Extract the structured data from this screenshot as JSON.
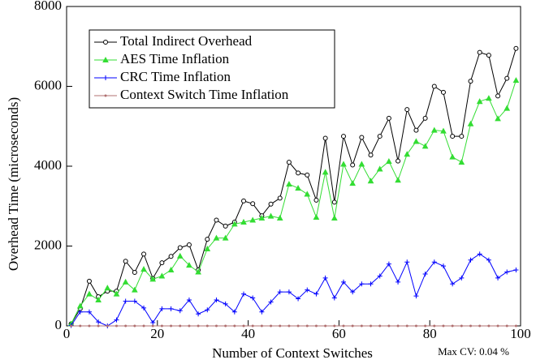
{
  "chart_data": {
    "type": "line",
    "x_label": "Number of Context Switches",
    "y_label": "Overhead Time (microseconds)",
    "annotation": "Max CV: 0.04 %",
    "x": [
      1,
      3,
      5,
      7,
      9,
      11,
      13,
      15,
      17,
      19,
      21,
      23,
      25,
      27,
      29,
      31,
      33,
      35,
      37,
      39,
      41,
      43,
      45,
      47,
      49,
      51,
      53,
      55,
      57,
      59,
      61,
      63,
      65,
      67,
      69,
      71,
      73,
      75,
      77,
      79,
      81,
      83,
      85,
      87,
      89,
      91,
      93,
      95,
      97,
      99
    ],
    "series": [
      {
        "name": "Total Indirect Overhead",
        "color": "#000000",
        "marker": "circle",
        "values": [
          50,
          430,
          1120,
          730,
          870,
          870,
          1620,
          1340,
          1800,
          1190,
          1580,
          1740,
          1960,
          2030,
          1400,
          2170,
          2650,
          2500,
          2600,
          3130,
          3060,
          2760,
          3050,
          3200,
          4100,
          3830,
          3780,
          3150,
          4700,
          3100,
          4750,
          4030,
          4720,
          4280,
          4750,
          5200,
          4130,
          5420,
          4900,
          5200,
          6000,
          5850,
          4750,
          4750,
          6130,
          6850,
          6780,
          5760,
          6200,
          6950
        ]
      },
      {
        "name": "AES Time Inflation",
        "color": "#33dd33",
        "marker": "triangle",
        "values": [
          50,
          500,
          800,
          650,
          950,
          800,
          1100,
          900,
          1420,
          1170,
          1250,
          1400,
          1750,
          1520,
          1350,
          1930,
          2200,
          2200,
          2550,
          2600,
          2650,
          2700,
          2750,
          2700,
          3550,
          3450,
          3300,
          2720,
          3850,
          2700,
          4050,
          3570,
          4050,
          3630,
          3930,
          4120,
          3650,
          4300,
          4620,
          4500,
          4900,
          4880,
          4230,
          4100,
          5060,
          5620,
          5700,
          5190,
          5450,
          6150
        ]
      },
      {
        "name": "CRC Time Inflation",
        "color": "#0000ff",
        "marker": "plus",
        "values": [
          10,
          350,
          350,
          100,
          0,
          150,
          620,
          620,
          450,
          80,
          430,
          430,
          380,
          650,
          300,
          400,
          650,
          550,
          350,
          800,
          700,
          350,
          600,
          850,
          850,
          680,
          900,
          800,
          1200,
          700,
          1100,
          850,
          1050,
          1050,
          1250,
          1550,
          1100,
          1600,
          750,
          1300,
          1600,
          1500,
          1050,
          1200,
          1650,
          1800,
          1650,
          1200,
          1350,
          1400
        ]
      },
      {
        "name": "Context Switch Time Inflation",
        "color": "#b07070",
        "marker": "dot",
        "values": [
          0,
          0,
          0,
          0,
          0,
          0,
          0,
          0,
          0,
          0,
          0,
          0,
          0,
          0,
          0,
          0,
          0,
          0,
          0,
          0,
          0,
          0,
          0,
          0,
          0,
          0,
          0,
          0,
          0,
          0,
          0,
          0,
          0,
          0,
          0,
          0,
          0,
          0,
          0,
          0,
          0,
          0,
          0,
          0,
          0,
          0,
          0,
          0,
          0,
          0
        ]
      }
    ],
    "xlim": [
      0,
      100
    ],
    "xticks": [
      0,
      20,
      40,
      60,
      80,
      100
    ],
    "ylim": [
      0,
      8000
    ],
    "yticks": [
      0,
      2000,
      4000,
      6000,
      8000
    ],
    "legend": "upper-left"
  }
}
